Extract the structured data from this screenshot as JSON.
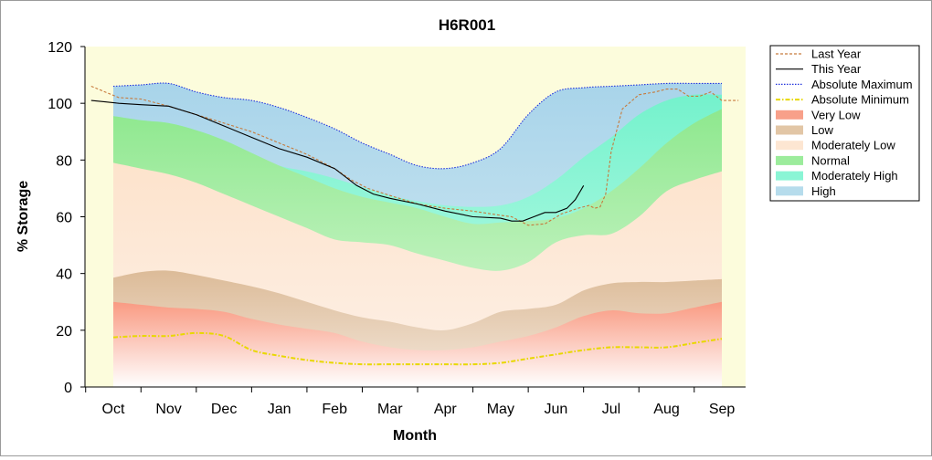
{
  "chart_data": {
    "type": "area",
    "title": "H6R001",
    "xlabel": "Month",
    "ylabel": "% Storage",
    "ylim": [
      0,
      120
    ],
    "yticks": [
      0,
      20,
      40,
      60,
      80,
      100,
      120
    ],
    "categories": [
      "Oct",
      "Nov",
      "Dec",
      "Jan",
      "Feb",
      "Mar",
      "Apr",
      "May",
      "Jun",
      "Jul",
      "Aug",
      "Sep"
    ],
    "legend_position": "right",
    "bands": {
      "x": [
        0.0,
        0.5,
        1.0,
        1.5,
        2.0,
        2.5,
        3.0,
        3.5,
        4.0,
        4.5,
        5.0,
        5.5,
        6.0,
        6.5,
        7.0,
        7.5,
        8.0,
        8.5,
        9.0,
        9.5,
        10.0,
        10.5,
        11.0
      ],
      "very_low_top": [
        30,
        29,
        28,
        27.5,
        26.5,
        24,
        22,
        20.5,
        19,
        16,
        14,
        13,
        13,
        14,
        16,
        18,
        21,
        25,
        27,
        26,
        26,
        28,
        30
      ],
      "low_top": [
        38.5,
        40.5,
        41,
        39.5,
        37.5,
        35.5,
        33,
        30,
        27,
        24.5,
        23,
        21,
        20,
        22.5,
        26.5,
        27.5,
        29,
        34,
        36.5,
        37,
        37,
        37.5,
        38
      ],
      "moderately_low_top": [
        79,
        77,
        75,
        72,
        68,
        64,
        60,
        56,
        52,
        51,
        50,
        47,
        44.5,
        42,
        41,
        44,
        51,
        53.5,
        54,
        60,
        69,
        73,
        76
      ],
      "normal_top": [
        95.5,
        94,
        93,
        90.5,
        87,
        82.5,
        78,
        74,
        70,
        67,
        65,
        63,
        60,
        57.5,
        58,
        58.5,
        59.5,
        63,
        69,
        77,
        86,
        93,
        98
      ],
      "moderately_high_top": [
        95.5,
        94,
        93,
        90.5,
        87,
        82.5,
        78,
        76,
        73.5,
        70.5,
        67.5,
        65.5,
        64,
        63.5,
        64,
        67,
        73,
        81,
        88,
        96,
        101,
        103,
        103
      ],
      "high_top": [
        106,
        106.5,
        107,
        104,
        102,
        101,
        98.5,
        95,
        91,
        86,
        82,
        78,
        77,
        79,
        84,
        96,
        104,
        105.5,
        106,
        106.5,
        107,
        107,
        107
      ]
    },
    "series": [
      {
        "name": "Last Year",
        "color": "#c77a3c",
        "style": "dashed",
        "x": [
          -0.4,
          -0.15,
          0.1,
          0.5,
          1.0,
          1.5,
          2.0,
          2.5,
          3.0,
          3.5,
          4.0,
          4.3,
          4.6,
          5.0,
          5.5,
          6.0,
          6.5,
          7.0,
          7.2,
          7.5,
          7.8,
          8.1,
          8.4,
          8.6,
          8.7,
          8.8,
          8.9,
          9.0,
          9.2,
          9.5,
          9.8,
          10.0,
          10.2,
          10.4,
          10.6,
          10.8,
          11.0,
          11.3
        ],
        "y": [
          106,
          104,
          102,
          101.5,
          99,
          96,
          93,
          90,
          86,
          82,
          77,
          73,
          70,
          67.5,
          64.5,
          63,
          62,
          60.5,
          60,
          57,
          57.5,
          61,
          63,
          64,
          63,
          63.5,
          68,
          83,
          98,
          103,
          104,
          105,
          105,
          102.5,
          102.5,
          104,
          101,
          101
        ]
      },
      {
        "name": "This Year",
        "color": "#000000",
        "style": "solid",
        "x": [
          -0.4,
          -0.15,
          0.1,
          0.5,
          1.0,
          1.5,
          2.0,
          2.5,
          3.0,
          3.5,
          4.0,
          4.2,
          4.4,
          4.7,
          5.0,
          5.5,
          6.0,
          6.5,
          7.0,
          7.2,
          7.4,
          7.6,
          7.8,
          8.0,
          8.2,
          8.35,
          8.5
        ],
        "y": [
          101,
          100.5,
          100,
          99.5,
          99,
          96,
          92,
          88,
          84,
          81,
          77,
          74,
          71,
          68,
          66.5,
          64.5,
          62,
          60,
          59.5,
          58.5,
          58.5,
          60,
          61.5,
          61.5,
          63,
          66,
          71
        ]
      },
      {
        "name": "Absolute Maximum",
        "color": "#2233dd",
        "style": "dotted",
        "x": [
          0.0,
          0.5,
          1.0,
          1.5,
          2.0,
          2.5,
          3.0,
          3.5,
          4.0,
          4.5,
          5.0,
          5.5,
          6.0,
          6.5,
          7.0,
          7.5,
          8.0,
          8.5,
          9.0,
          9.5,
          10.0,
          10.5,
          11.0
        ],
        "y": [
          106,
          106.5,
          107,
          104,
          102,
          101,
          98.5,
          95,
          91,
          86,
          82,
          78,
          77,
          79,
          84,
          96,
          104,
          105.5,
          106,
          106.5,
          107,
          107,
          107
        ]
      },
      {
        "name": "Absolute Minimum",
        "color": "#e8d800",
        "style": "dashdot",
        "x": [
          0.0,
          0.5,
          1.0,
          1.5,
          2.0,
          2.5,
          3.0,
          3.5,
          4.0,
          4.5,
          5.0,
          5.5,
          6.0,
          6.5,
          7.0,
          7.5,
          8.0,
          8.5,
          9.0,
          9.5,
          10.0,
          10.5,
          11.0
        ],
        "y": [
          17.5,
          18,
          18,
          19,
          18,
          13,
          11,
          9.5,
          8.5,
          8,
          8,
          8,
          8,
          8,
          8.5,
          10,
          11.5,
          13,
          14,
          14,
          14,
          15.5,
          17
        ]
      }
    ],
    "legend": [
      {
        "label": "Last Year",
        "kind": "line",
        "color": "#c77a3c",
        "style": "dashed"
      },
      {
        "label": "This Year",
        "kind": "line",
        "color": "#000000",
        "style": "solid"
      },
      {
        "label": "Absolute Maximum",
        "kind": "line",
        "color": "#2233dd",
        "style": "dotted"
      },
      {
        "label": "Absolute Minimum",
        "kind": "line",
        "color": "#e8d800",
        "style": "dashdot"
      },
      {
        "label": "Very Low",
        "kind": "band",
        "color": "#f8a08a"
      },
      {
        "label": "Low",
        "kind": "band",
        "color": "#e2c6a6"
      },
      {
        "label": "Moderately Low",
        "kind": "band",
        "color": "#fde6d2"
      },
      {
        "label": "Normal",
        "kind": "band",
        "color": "#9cec9c"
      },
      {
        "label": "Moderately High",
        "kind": "band",
        "color": "#8af5d5"
      },
      {
        "label": "High",
        "kind": "band",
        "color": "#b6dcec"
      }
    ],
    "colors": {
      "plot_background": "#fcfcdc",
      "very_low": "#f8a08a",
      "low": "#e2c6a6",
      "moderately_low": "#fde6d2",
      "normal": "#9cec9c",
      "moderately_high": "#8af5d5",
      "high": "#b6dcec"
    }
  }
}
